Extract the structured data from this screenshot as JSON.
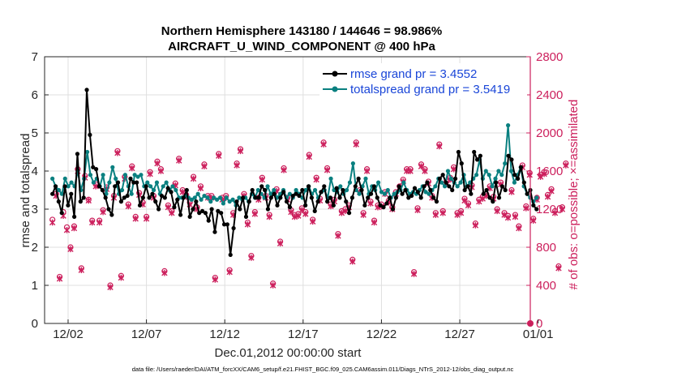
{
  "chart_data": {
    "type": "line",
    "title_line1": "Northern Hemisphere 143180 / 144646 = 98.986%",
    "title_line2": "AIRCRAFT_U_WIND_COMPONENT @ 400 hPa",
    "xlabel": "Dec.01,2012 00:00:00 start",
    "ylabel_left": "rmse and totalspread",
    "ylabel_right": "# of obs: o=possible; ×=assimilated",
    "footnote": "data file: /Users/raeder/DAI/ATM_forcXX/CAM6_setup/f.e21.FHIST_BGC.f09_025.CAM6assim.011/Diags_NTrS_2012-12/obs_diag_output.nc",
    "xlim": [
      0.5,
      31.5
    ],
    "ylim_left": [
      0,
      7
    ],
    "ylim_right": [
      0,
      2800
    ],
    "xticks": [
      {
        "value": 2,
        "label": "12/02"
      },
      {
        "value": 7,
        "label": "12/07"
      },
      {
        "value": 12,
        "label": "12/12"
      },
      {
        "value": 17,
        "label": "12/17"
      },
      {
        "value": 22,
        "label": "12/22"
      },
      {
        "value": 27,
        "label": "12/27"
      },
      {
        "value": 32,
        "label": "01/01"
      }
    ],
    "yticks_left": [
      "0",
      "1",
      "2",
      "3",
      "4",
      "5",
      "6",
      "7"
    ],
    "yticks_right": [
      "0",
      "400",
      "800",
      "1200",
      "1600",
      "2000",
      "2400",
      "2800"
    ],
    "grid": true,
    "legend_position": "top-right",
    "colors": {
      "rmse": "#000000",
      "spread": "#0a8080",
      "obs": "#cc1f5c",
      "legend_text": "#1a46d8",
      "right_axis": "#cc1f5c"
    },
    "series": [
      {
        "name": "rmse grand pr = 3.4552",
        "values": [
          3.4,
          3.6,
          3.2,
          2.9,
          3.6,
          3.1,
          3.4,
          2.8,
          4.45,
          3.2,
          3.3,
          6.13,
          4.95,
          4.1,
          4.05,
          3.6,
          3.5,
          3.3,
          3.0,
          2.85,
          3.6,
          3.7,
          3.2,
          3.3,
          3.35,
          3.8,
          3.7,
          3.7,
          3.1,
          3.3,
          3.6,
          3.3,
          3.4,
          3.2,
          3.0,
          3.35,
          3.3,
          3.55,
          3.45,
          3.05,
          3.25,
          2.85,
          3.3,
          3.5,
          2.8,
          3.0,
          3.2,
          2.9,
          2.95,
          2.9,
          2.7,
          3.0,
          2.4,
          2.95,
          2.9,
          2.6,
          2.6,
          1.8,
          2.5,
          3.2,
          3.0,
          3.3,
          2.8,
          3.2,
          3.5,
          3.3,
          3.3,
          3.6,
          3.5,
          3.0,
          3.3,
          3.4,
          3.1,
          3.3,
          3.45,
          3.2,
          3.05,
          3.35,
          3.4,
          3.35,
          3.5,
          3.1,
          3.6,
          3.3,
          2.95,
          3.2,
          3.45,
          3.6,
          3.2,
          3.3,
          3.1,
          3.55,
          3.3,
          3.5,
          3.2,
          2.9,
          3.3,
          3.6,
          3.8,
          3.5,
          3.1,
          3.3,
          3.4,
          3.6,
          3.3,
          3.1,
          3.05,
          3.15,
          3.3,
          3.0,
          3.3,
          3.6,
          3.4,
          3.5,
          3.3,
          3.35,
          3.55,
          3.45,
          3.3,
          3.6,
          3.7,
          3.5,
          3.3,
          3.2,
          3.8,
          3.9,
          3.7,
          3.6,
          3.5,
          3.8,
          4.5,
          4.2,
          3.5,
          3.6,
          3.4,
          4.5,
          4.3,
          4.4,
          3.4,
          3.5,
          3.3,
          3.2,
          3.7,
          3.3,
          3.6,
          3.5,
          4.4,
          4.3,
          3.9,
          3.8,
          4.1,
          3.7,
          3.4,
          3.5,
          3.1,
          3.0
        ],
        "marker": "dot"
      },
      {
        "name": "totalspread grand pr = 3.5419",
        "values": [
          3.8,
          3.6,
          3.5,
          3.4,
          3.8,
          3.6,
          3.7,
          3.6,
          4.0,
          3.5,
          3.8,
          4.5,
          3.9,
          3.7,
          3.8,
          3.6,
          3.9,
          3.4,
          3.7,
          4.1,
          3.8,
          3.4,
          3.5,
          3.9,
          3.6,
          3.4,
          3.9,
          3.85,
          3.9,
          3.6,
          3.7,
          3.6,
          3.5,
          3.7,
          3.4,
          3.6,
          3.7,
          3.5,
          3.6,
          3.5,
          3.3,
          3.3,
          3.35,
          3.3,
          3.25,
          3.3,
          3.4,
          3.25,
          3.35,
          3.3,
          3.2,
          3.3,
          3.25,
          3.3,
          3.15,
          3.3,
          3.2,
          3.25,
          3.1,
          3.3,
          3.25,
          3.3,
          3.2,
          3.4,
          3.3,
          3.5,
          3.4,
          3.3,
          3.6,
          3.4,
          3.5,
          3.3,
          3.4,
          3.5,
          3.3,
          3.4,
          3.3,
          3.5,
          3.4,
          3.3,
          3.5,
          3.6,
          3.4,
          3.5,
          3.3,
          3.45,
          3.5,
          3.3,
          3.8,
          3.5,
          3.45,
          3.6,
          3.4,
          3.5,
          3.7,
          4.2,
          3.5,
          3.4,
          3.6,
          3.8,
          3.4,
          3.6,
          3.5,
          3.7,
          3.45,
          3.4,
          3.5,
          3.3,
          3.4,
          3.45,
          3.5,
          3.7,
          3.5,
          3.4,
          3.45,
          3.4,
          3.5,
          3.6,
          3.45,
          3.4,
          3.5,
          3.6,
          3.8,
          3.7,
          3.6,
          4.0,
          3.8,
          3.7,
          3.6,
          3.7,
          3.9,
          3.6,
          3.7,
          3.8,
          3.9,
          4.3,
          3.8,
          4.0,
          3.9,
          3.6,
          3.8,
          4.0,
          3.9,
          4.2,
          5.2,
          4.0,
          3.7,
          3.9,
          4.1,
          3.6,
          3.4,
          3.3,
          3.2,
          3.3
        ],
        "marker": "dot"
      }
    ],
    "obs_assimilated_by_day": [
      [
        1060,
        1340,
        470,
        1130,
        980,
        780,
        1000,
        1600,
        560,
        1530,
        1290,
        1060,
        1440
      ],
      [
        1060,
        1170,
        1410,
        380,
        1320,
        1790,
        480,
        1520,
        1230,
        1630,
        1100,
        1350,
        1250
      ],
      [
        1100,
        1570,
        1320,
        1680,
        1600,
        530,
        1220,
        1160,
        1450,
        1710,
        1380,
        1330,
        1250
      ],
      [
        1520,
        1200,
        1420,
        1650,
        1320,
        1320,
        460,
        1760,
        1300,
        1320,
        540,
        1140,
        1660
      ],
      [
        1810,
        1340,
        1040,
        690,
        1150,
        1300,
        1510,
        1320,
        1120,
        400,
        1390,
        840,
        1610
      ],
      [
        1300,
        1170,
        1120,
        1130,
        1190,
        1150,
        1750,
        1070,
        1510,
        1290,
        1880,
        1610,
        1230
      ],
      [
        1280,
        920,
        1160,
        1180,
        1220,
        650,
        1880,
        1380,
        1140,
        1600,
        1260,
        1060,
        1220
      ],
      [
        1230,
        1360,
        1270,
        1200,
        1360,
        1420,
        1490,
        1600,
        1600,
        520,
        1190,
        1650,
        1600
      ],
      [
        1470,
        1320,
        1140,
        1860,
        1160,
        1470,
        1510,
        1620,
        1140,
        1160,
        1290,
        1240,
        1430
      ],
      [
        1030,
        1280,
        1310,
        1340,
        1420,
        1310,
        1180,
        1460,
        1140,
        1110,
        1380,
        1120,
        1000
      ],
      [
        1640,
        1210,
        1560,
        1080,
        1300,
        1540,
        1570,
        1330,
        1390,
        1160,
        580,
        1200,
        1660
      ]
    ],
    "obs_possible_by_day": [
      [
        1090,
        1360,
        490,
        1170,
        1010,
        800,
        1020,
        1620,
        580,
        1550,
        1300,
        1080,
        1460
      ],
      [
        1080,
        1190,
        1430,
        400,
        1340,
        1810,
        500,
        1540,
        1250,
        1650,
        1120,
        1370,
        1270
      ],
      [
        1120,
        1590,
        1340,
        1700,
        1620,
        550,
        1240,
        1180,
        1470,
        1730,
        1400,
        1350,
        1270
      ],
      [
        1540,
        1220,
        1440,
        1670,
        1340,
        1340,
        480,
        1780,
        1320,
        1340,
        560,
        1160,
        1680
      ],
      [
        1830,
        1360,
        1060,
        710,
        1170,
        1320,
        1530,
        1340,
        1140,
        420,
        1410,
        860,
        1630
      ],
      [
        1320,
        1190,
        1140,
        1150,
        1210,
        1170,
        1770,
        1090,
        1530,
        1310,
        1900,
        1630,
        1250
      ],
      [
        1300,
        940,
        1180,
        1200,
        1240,
        670,
        1900,
        1400,
        1160,
        1620,
        1280,
        1080,
        1240
      ],
      [
        1250,
        1380,
        1290,
        1220,
        1380,
        1440,
        1510,
        1620,
        1620,
        540,
        1210,
        1670,
        1620
      ],
      [
        1490,
        1340,
        1160,
        1880,
        1180,
        1490,
        1530,
        1640,
        1160,
        1180,
        1310,
        1260,
        1450
      ],
      [
        1050,
        1300,
        1330,
        1360,
        1440,
        1330,
        1200,
        1480,
        1160,
        1130,
        1400,
        1140,
        1020
      ],
      [
        1660,
        1230,
        1580,
        1100,
        1320,
        1560,
        1590,
        1350,
        1410,
        1180,
        600,
        1220,
        1680
      ]
    ]
  }
}
